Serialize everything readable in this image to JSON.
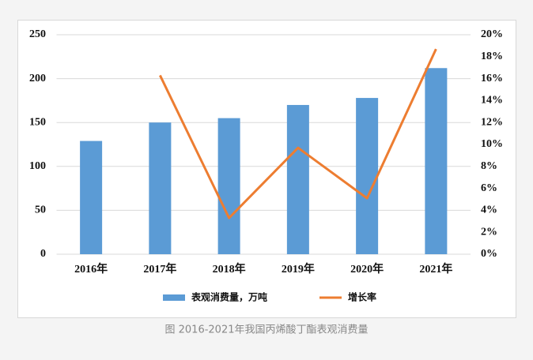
{
  "chart_data": {
    "type": "bar",
    "caption": "图 2016-2021年我国丙烯酸丁酯表观消费量",
    "categories": [
      "2016年",
      "2017年",
      "2018年",
      "2019年",
      "2020年",
      "2021年"
    ],
    "series": [
      {
        "name": "表观消费量，万吨",
        "type": "bar",
        "color": "#5b9bd5",
        "values": [
          129,
          150,
          155,
          170,
          178,
          212
        ]
      },
      {
        "name": "增长率",
        "type": "line",
        "axis": "y2",
        "color": "#ed7d31",
        "values": [
          null,
          16.3,
          3.3,
          9.7,
          5.1,
          18.7
        ]
      }
    ],
    "ylim": [
      0,
      250
    ],
    "yticks": [
      0,
      50,
      100,
      150,
      200,
      250
    ],
    "y2lim": [
      0,
      20
    ],
    "y2ticks": [
      {
        "value": 0,
        "label": "0%"
      },
      {
        "value": 2,
        "label": "2%"
      },
      {
        "value": 4,
        "label": "4%"
      },
      {
        "value": 6,
        "label": "6%"
      },
      {
        "value": 8,
        "label": "8%"
      },
      {
        "value": 10,
        "label": "10%"
      },
      {
        "value": 12,
        "label": "12%"
      },
      {
        "value": 14,
        "label": "14%"
      },
      {
        "value": 16,
        "label": "16%"
      },
      {
        "value": 18,
        "label": "18%"
      },
      {
        "value": 20,
        "label": "20%"
      }
    ],
    "grid": true,
    "legend": "bottom"
  }
}
